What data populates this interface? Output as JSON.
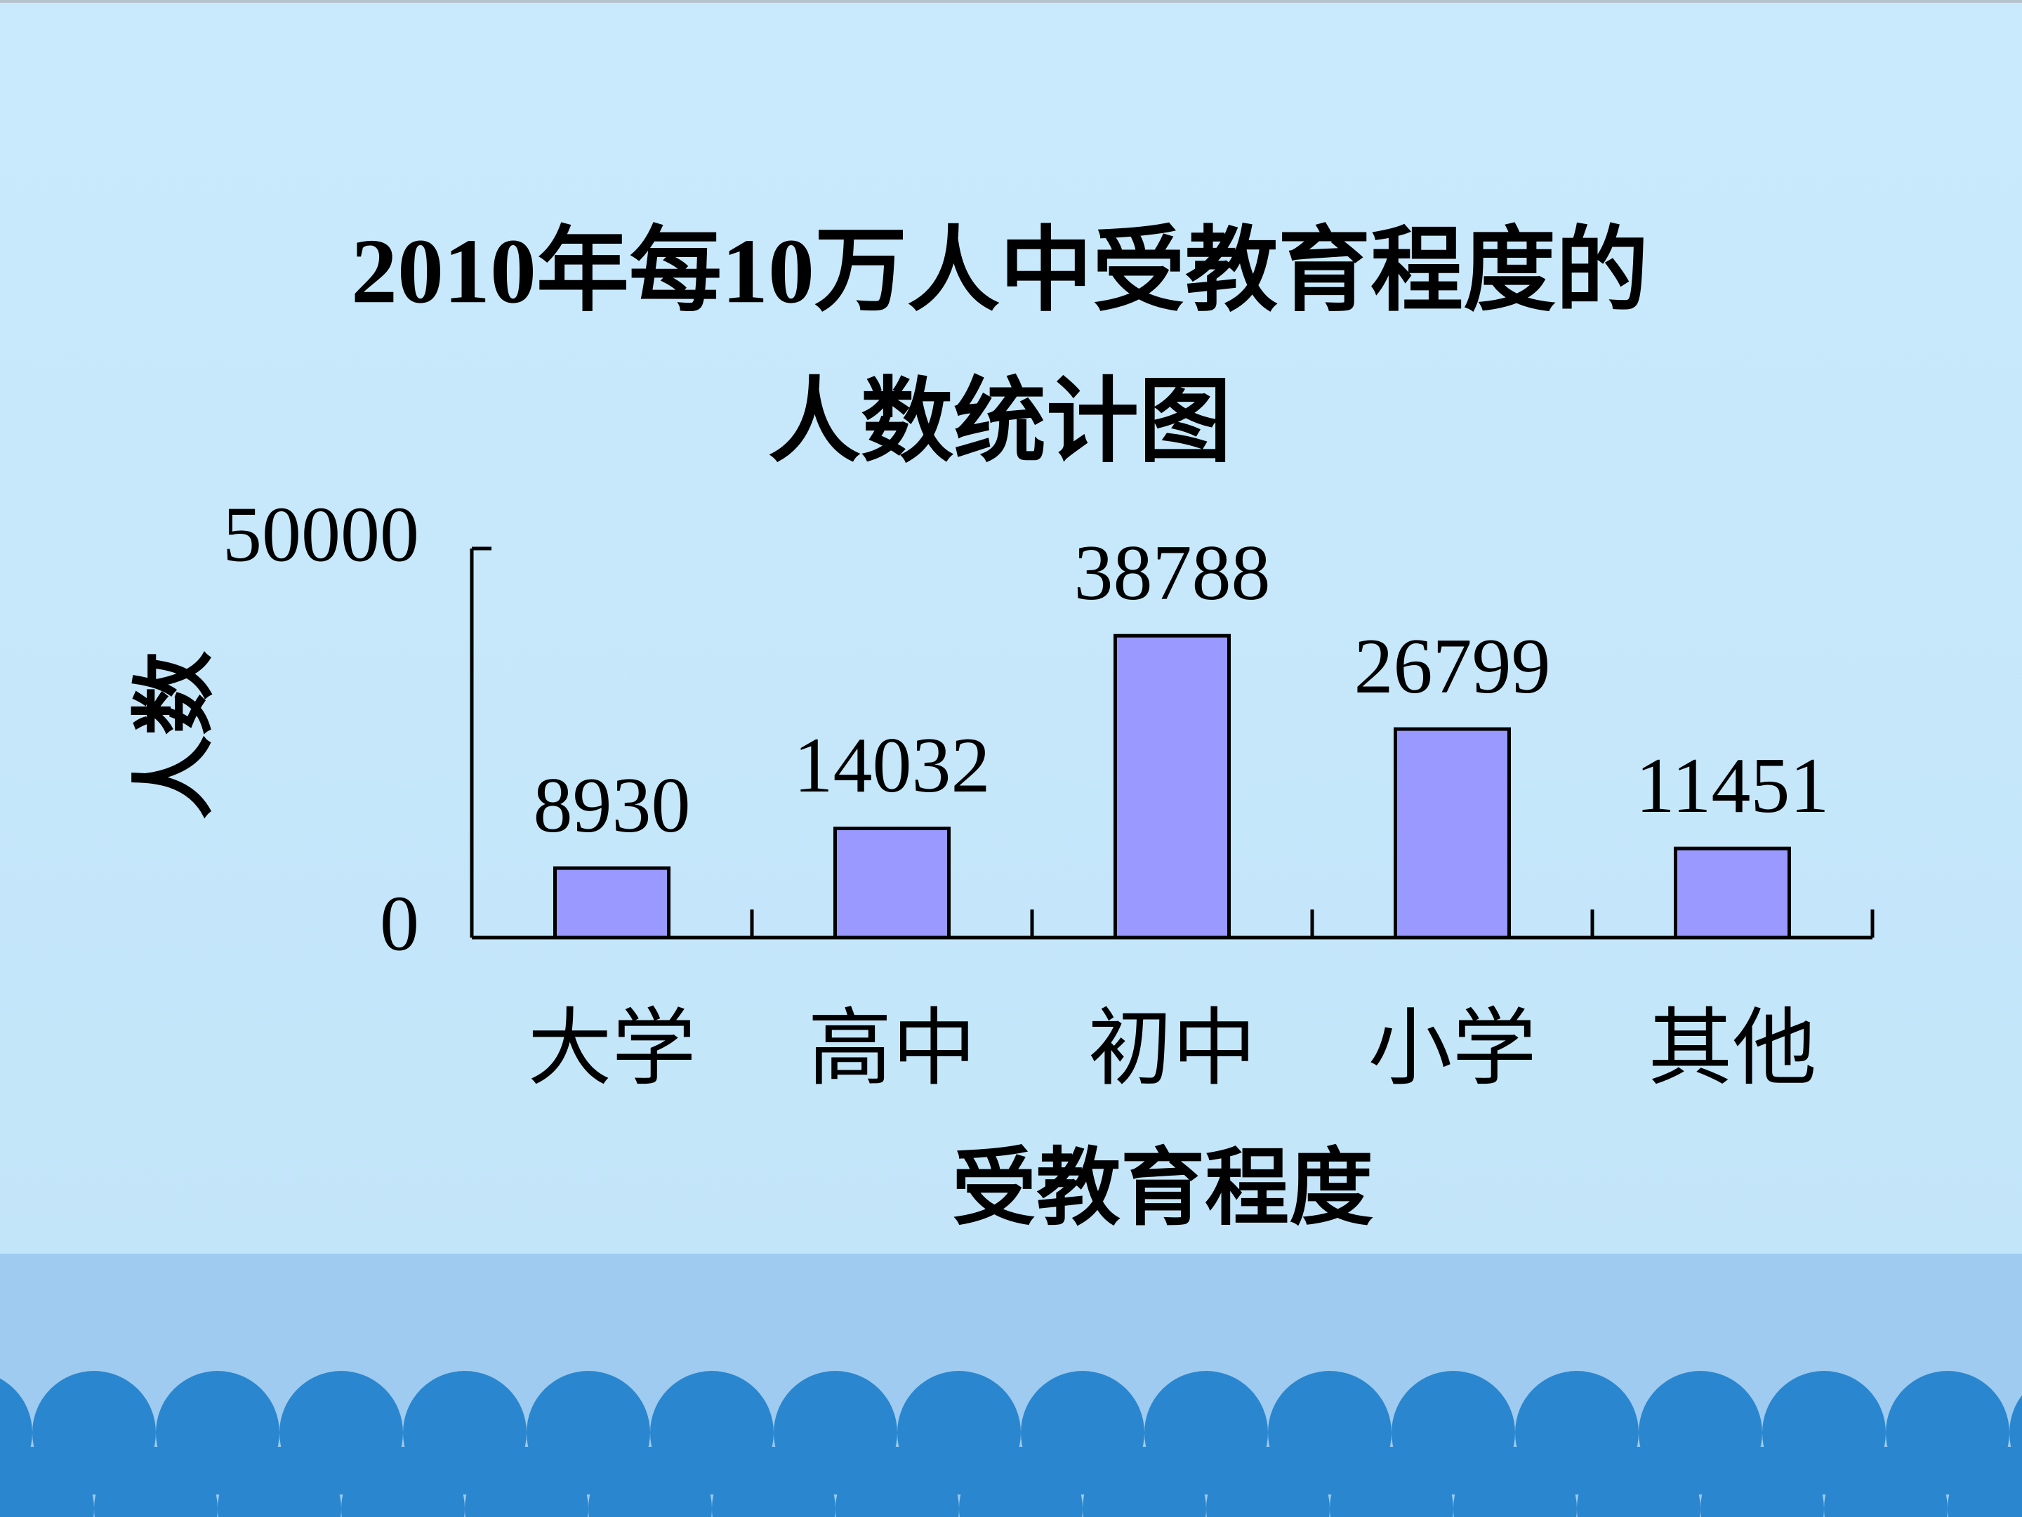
{
  "chart_data": {
    "type": "bar",
    "title": [
      "2010年每10万人中受教育程度的",
      "人数统计图"
    ],
    "x_label": "受教育程度",
    "y_label": "人数",
    "categories": [
      "大学",
      "高中",
      "初中",
      "小学",
      "其他"
    ],
    "values": [
      8930,
      14032,
      38788,
      26799,
      11451
    ],
    "color": "#9999ff",
    "ylim": [
      0,
      50000
    ],
    "yticks": [
      0,
      50000
    ],
    "grid": false
  }
}
